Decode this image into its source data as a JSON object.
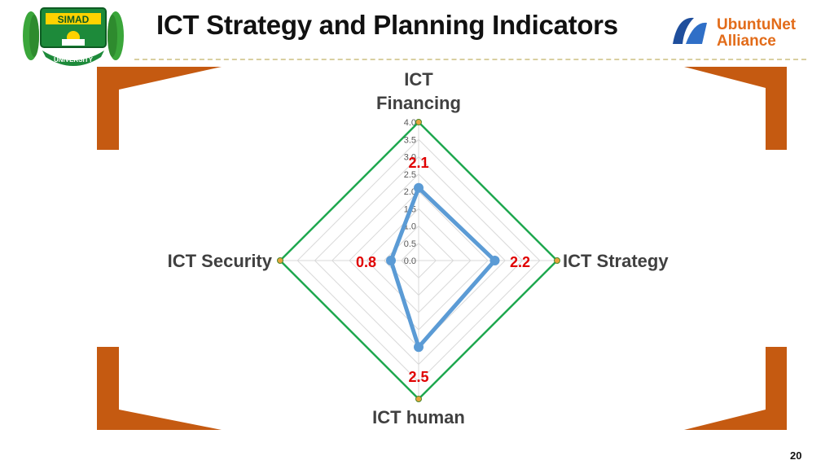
{
  "slide": {
    "title": "ICT Strategy and Planning Indicators",
    "page_number": "20"
  },
  "logos": {
    "left": {
      "name": "simad-university-logo",
      "text_top": "SIMAD",
      "text_bottom": "UNIVERSITY"
    },
    "right": {
      "name": "ubuntunet-alliance-logo",
      "line1": "UbuntuNet",
      "line2": "Alliance"
    }
  },
  "colors": {
    "accent_orange": "#c55a11",
    "series_blue": "#5b9bd5",
    "outline_green": "#1fa84f",
    "value_red": "#e00000",
    "title_dark": "#111111"
  },
  "chart_data": {
    "type": "radar",
    "axes": [
      "ICT Financing",
      "ICT Strategy",
      "ICT human",
      "ICT Security"
    ],
    "axis_label_lines": [
      [
        "ICT",
        "Financing"
      ],
      [
        "ICT Strategy"
      ],
      [
        "ICT human"
      ],
      [
        "ICT Security"
      ]
    ],
    "ticks": [
      "0.0",
      "0.5",
      "1.0",
      "1.5",
      "2.0",
      "2.5",
      "3.0",
      "3.5",
      "4.0"
    ],
    "range": [
      0,
      4
    ],
    "grid": true,
    "series": [
      {
        "values": [
          2.1,
          2.2,
          2.5,
          0.8
        ],
        "labels": [
          "2.1",
          "2.2",
          "2.5",
          "0.8"
        ]
      },
      {
        "values": [
          4,
          4,
          4,
          4
        ]
      }
    ]
  }
}
